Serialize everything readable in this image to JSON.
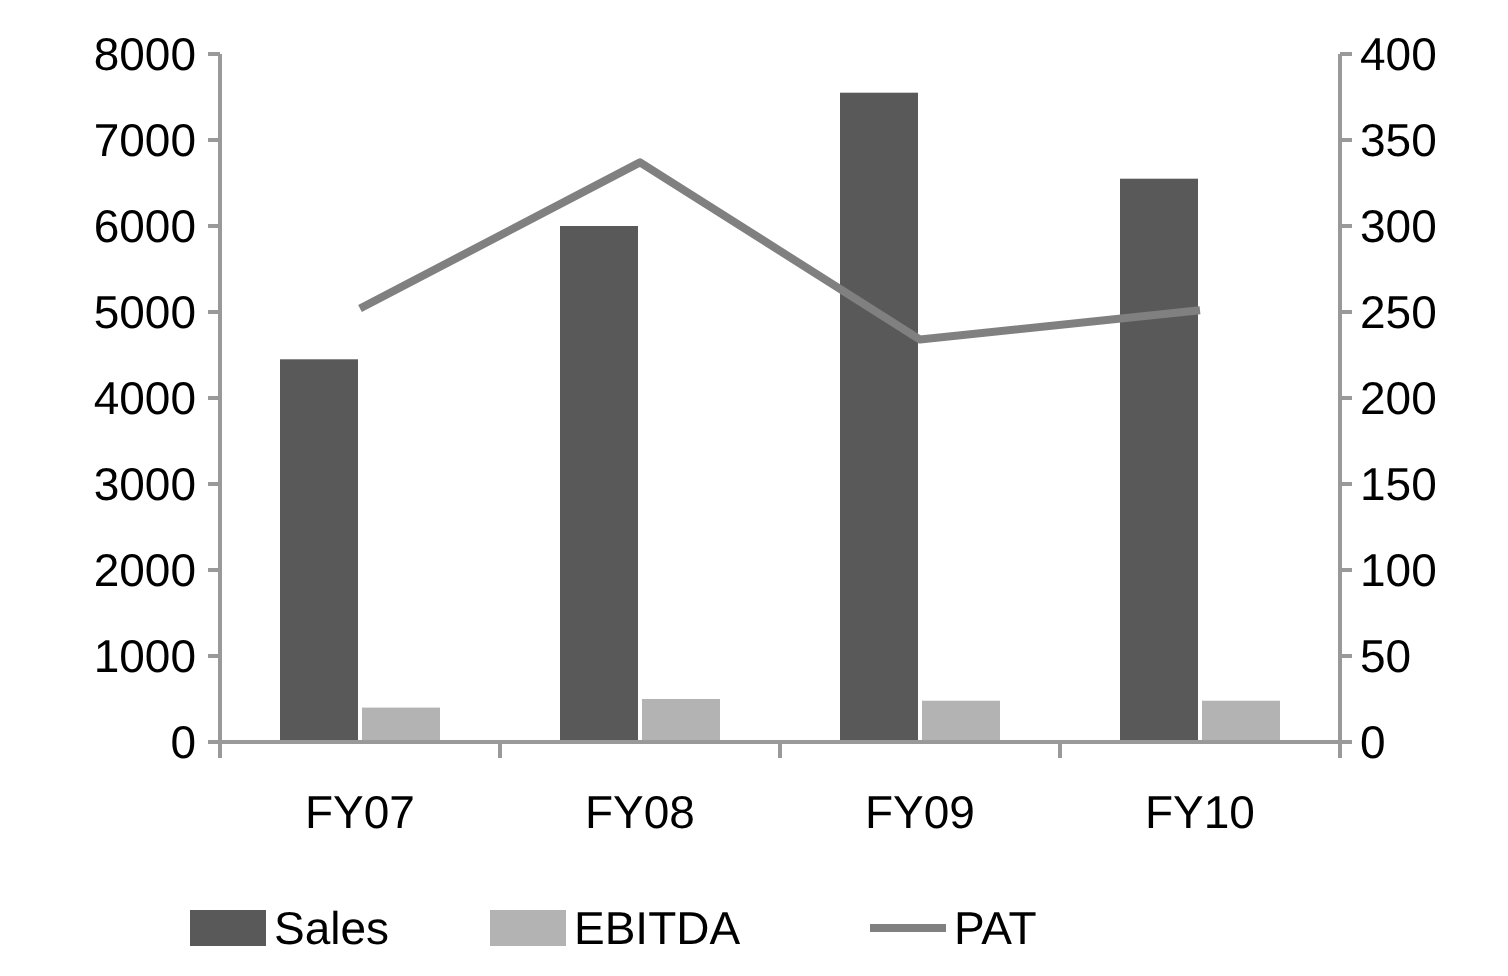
{
  "chart_data": {
    "type": "bar",
    "categories": [
      "FY07",
      "FY08",
      "FY09",
      "FY10"
    ],
    "series": [
      {
        "name": "Sales",
        "color": "#595959",
        "values": [
          4450,
          6000,
          7550,
          6550
        ]
      },
      {
        "name": "EBITDA",
        "color": "#b3b3b3",
        "values": [
          400,
          500,
          480,
          480
        ]
      },
      {
        "name": "PAT",
        "type": "line",
        "axis": "y2",
        "color": "#808080",
        "values": [
          252,
          337,
          234,
          251
        ]
      }
    ],
    "ylim": [
      0,
      8000
    ],
    "yticks": [
      0,
      1000,
      2000,
      3000,
      4000,
      5000,
      6000,
      7000,
      8000
    ],
    "y2lim": [
      0,
      400
    ],
    "y2ticks": [
      0,
      50,
      100,
      150,
      200,
      250,
      300,
      350,
      400
    ],
    "legend": "bottom",
    "grid": false,
    "marker": "none"
  }
}
